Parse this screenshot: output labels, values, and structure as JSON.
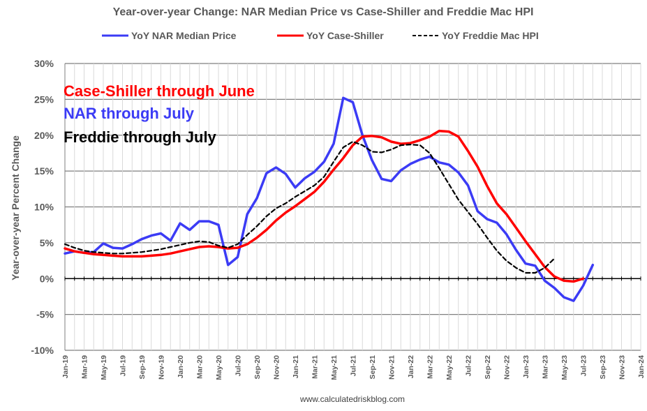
{
  "chart_data": {
    "type": "line",
    "title": "Year-over-year Change: NAR Median Price vs Case-Shiller and Freddie Mac HPI",
    "ylabel": "Year-over-year Percent Change",
    "xlabel": "",
    "ylim": [
      -10,
      30
    ],
    "yticks": [
      "30%",
      "25%",
      "20%",
      "15%",
      "10%",
      "5%",
      "0%",
      "-5%",
      "-10%"
    ],
    "ytick_values": [
      30,
      25,
      20,
      15,
      10,
      5,
      0,
      -5,
      -10
    ],
    "x_tick_labels": [
      "Jan-19",
      "Mar-19",
      "May-19",
      "Jul-19",
      "Sep-19",
      "Nov-19",
      "Jan-20",
      "Mar-20",
      "May-20",
      "Jul-20",
      "Sep-20",
      "Nov-20",
      "Jan-21",
      "Mar-21",
      "May-21",
      "Jul-21",
      "Sep-21",
      "Nov-21",
      "Jan-22",
      "Mar-22",
      "May-22",
      "Jul-22",
      "Sep-22",
      "Nov-22",
      "Jan-23",
      "Mar-23",
      "May-23",
      "Jul-23",
      "Sep-23",
      "Nov-23",
      "Jan-24"
    ],
    "grid": true,
    "legend_position": "top",
    "series": [
      {
        "name": "YoY NAR Median Price",
        "color": "#3b3bf5",
        "style": "solid",
        "start": "Jan-19",
        "values": [
          3.5,
          3.8,
          3.6,
          3.7,
          4.9,
          4.3,
          4.2,
          4.8,
          5.5,
          6.0,
          6.3,
          5.3,
          7.7,
          6.8,
          8.0,
          8.0,
          7.5,
          1.9,
          3.0,
          9.0,
          11.2,
          14.7,
          15.5,
          14.6,
          12.7,
          14.0,
          14.9,
          16.3,
          18.8,
          25.2,
          24.6,
          20.0,
          16.5,
          13.9,
          13.6,
          15.1,
          16.0,
          16.6,
          17.0,
          16.2,
          15.9,
          14.8,
          13.0,
          9.4,
          8.3,
          7.8,
          6.2,
          4.0,
          2.1,
          1.8,
          -0.3,
          -1.3,
          -2.6,
          -3.1,
          -1.0,
          1.9
        ]
      },
      {
        "name": "YoY Case-Shiller",
        "color": "#ff0000",
        "style": "solid",
        "start": "Jan-19",
        "values": [
          4.2,
          3.8,
          3.6,
          3.4,
          3.3,
          3.2,
          3.1,
          3.1,
          3.1,
          3.2,
          3.3,
          3.5,
          3.8,
          4.1,
          4.4,
          4.5,
          4.4,
          4.2,
          4.3,
          4.8,
          5.7,
          6.8,
          8.1,
          9.2,
          10.1,
          11.1,
          12.1,
          13.5,
          15.2,
          16.8,
          18.6,
          19.8,
          19.9,
          19.7,
          19.1,
          18.8,
          18.9,
          19.3,
          19.8,
          20.6,
          20.5,
          19.8,
          17.8,
          15.6,
          12.9,
          10.5,
          9.0,
          7.1,
          5.2,
          3.4,
          1.6,
          0.3,
          -0.3,
          -0.4,
          0.0
        ]
      },
      {
        "name": "YoY Freddie Mac HPI",
        "color": "#000000",
        "style": "dashed",
        "start": "Jan-19",
        "values": [
          4.8,
          4.3,
          3.9,
          3.7,
          3.6,
          3.5,
          3.5,
          3.6,
          3.7,
          3.9,
          4.1,
          4.4,
          4.7,
          5.0,
          5.2,
          5.1,
          4.6,
          4.3,
          4.8,
          6.1,
          7.3,
          8.7,
          9.8,
          10.5,
          11.4,
          12.2,
          13.0,
          14.2,
          16.3,
          18.3,
          19.1,
          18.6,
          17.7,
          17.6,
          18.0,
          18.6,
          18.7,
          18.6,
          17.5,
          15.4,
          13.2,
          11.0,
          9.3,
          7.6,
          5.7,
          3.9,
          2.5,
          1.5,
          0.8,
          0.8,
          1.5,
          2.8
        ]
      }
    ],
    "annotations": [
      {
        "text": "Case-Shiller through June",
        "color": "#ff0000"
      },
      {
        "text": "NAR through July",
        "color": "#3b3bf5"
      },
      {
        "text": "Freddie through July",
        "color": "#000000"
      }
    ]
  },
  "credit": "www.calculatedriskblog.com"
}
